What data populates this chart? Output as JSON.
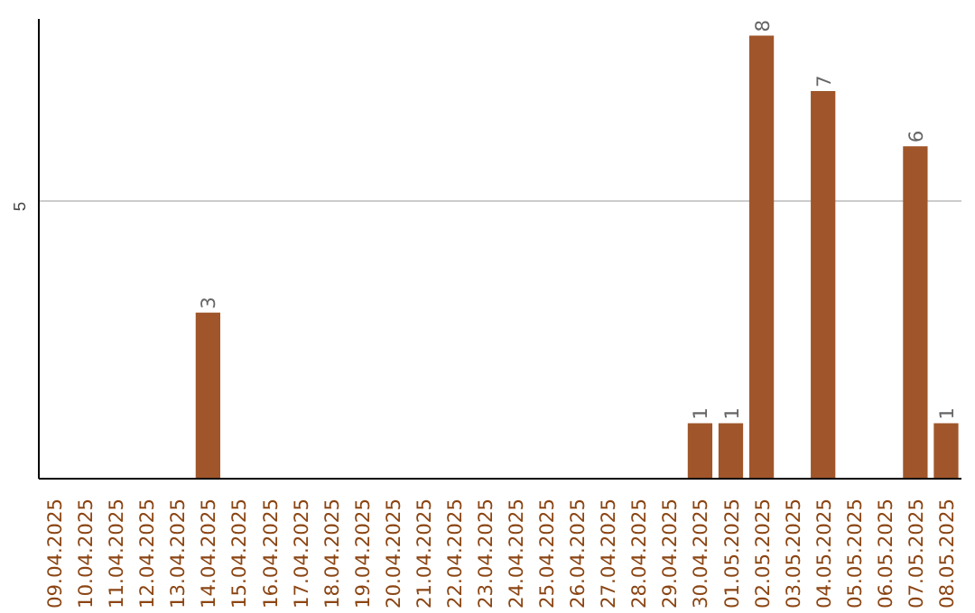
{
  "chart_data": {
    "type": "bar",
    "categories": [
      "09.04.2025",
      "10.04.2025",
      "11.04.2025",
      "12.04.2025",
      "13.04.2025",
      "14.04.2025",
      "15.04.2025",
      "16.04.2025",
      "17.04.2025",
      "18.04.2025",
      "19.04.2025",
      "20.04.2025",
      "21.04.2025",
      "22.04.2025",
      "23.04.2025",
      "24.04.2025",
      "25.04.2025",
      "26.04.2025",
      "27.04.2025",
      "28.04.2025",
      "29.04.2025",
      "30.04.2025",
      "01.05.2025",
      "02.05.2025",
      "03.05.2025",
      "04.05.2025",
      "05.05.2025",
      "06.05.2025",
      "07.05.2025",
      "08.05.2025"
    ],
    "values": [
      0,
      0,
      0,
      0,
      0,
      3,
      0,
      0,
      0,
      0,
      0,
      0,
      0,
      0,
      0,
      0,
      0,
      0,
      0,
      0,
      0,
      1,
      1,
      8,
      0,
      7,
      0,
      0,
      6,
      1
    ],
    "value_labels": [
      null,
      null,
      null,
      null,
      null,
      "3",
      null,
      null,
      null,
      null,
      null,
      null,
      null,
      null,
      null,
      null,
      null,
      null,
      null,
      null,
      null,
      "1",
      "1",
      "8",
      null,
      "7",
      null,
      null,
      "6",
      "1"
    ],
    "color": "#a0562a",
    "ylim": [
      0,
      8.3
    ],
    "yticks": [
      5
    ],
    "grid": "y"
  }
}
